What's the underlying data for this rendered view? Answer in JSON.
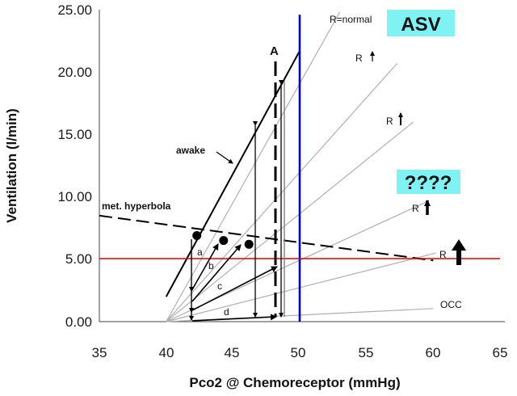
{
  "chart_data": {
    "type": "line",
    "title": "",
    "xlabel": "Pco2 @ Chemoreceptor (mmHg)",
    "ylabel": "Ventilation (l/min)",
    "xlim": [
      35,
      65
    ],
    "ylim": [
      0,
      25
    ],
    "x_ticks": [
      "35",
      "40",
      "45",
      "50",
      "55",
      "60",
      "65"
    ],
    "y_ticks": [
      "0.00",
      "5.00",
      "10.00",
      "15.00",
      "20.00",
      "25.00"
    ],
    "grid": false,
    "series": [
      {
        "name": "R=normal",
        "x": [
          40,
          53
        ],
        "y": [
          0,
          24.8
        ],
        "color": "#b0b0b0"
      },
      {
        "name": "R ↑",
        "x": [
          40,
          57.3
        ],
        "y": [
          0,
          20.7
        ],
        "color": "#b0b0b0"
      },
      {
        "name": "R ↑ (steeper)",
        "x": [
          40,
          58.5
        ],
        "y": [
          0,
          16
        ],
        "color": "#b0b0b0"
      },
      {
        "name": "R ↑ (large)",
        "x": [
          40,
          59.5
        ],
        "y": [
          0,
          9.6
        ],
        "color": "#b0b0b0"
      },
      {
        "name": "R ↑ (largest)",
        "x": [
          40,
          60.2
        ],
        "y": [
          0,
          5.5
        ],
        "color": "#b0b0b0"
      },
      {
        "name": "OCC",
        "x": [
          40,
          60
        ],
        "y": [
          0,
          1.05
        ],
        "color": "#b0b0b0"
      },
      {
        "name": "awake",
        "x": [
          40,
          50
        ],
        "y": [
          2,
          21.7
        ],
        "color": "#000000"
      },
      {
        "name": "met. hyperbola",
        "x": [
          35,
          60
        ],
        "y": [
          8.5,
          4.9
        ],
        "color": "#000000",
        "dash": true
      },
      {
        "name": "ASV Pco2 limit",
        "x": [
          50,
          50
        ],
        "y": [
          0,
          24.6
        ],
        "color": "#0000cc"
      },
      {
        "name": "ventilation 5 l/min",
        "x": [
          35,
          65
        ],
        "y": [
          5.05,
          5.05
        ],
        "color": "#e00000"
      }
    ],
    "points": [
      {
        "x": 42.3,
        "y": 6.9
      },
      {
        "x": 44.3,
        "y": 6.5
      },
      {
        "x": 46.2,
        "y": 6.2
      }
    ],
    "annotations": {
      "awake": "awake",
      "met_hyperbola": "met. hyperbola",
      "r_normal": "R=normal",
      "r_up": "R",
      "occ": "OCC",
      "a_big": "A",
      "a": "a",
      "b": "b",
      "c": "c",
      "d": "d",
      "asv": "ASV",
      "question": "????"
    }
  }
}
